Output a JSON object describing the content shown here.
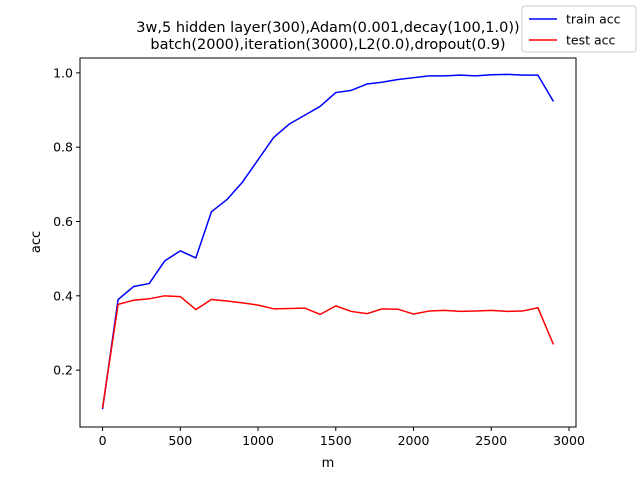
{
  "chart_data": {
    "type": "line",
    "title_lines": [
      "3w,5 hidden layer(300),Adam(0.001,decay(100,1.0))",
      "batch(2000),iteration(3000),L2(0.0),dropout(0.9)"
    ],
    "xlabel": "m",
    "ylabel": "acc",
    "xlim": [
      -145,
      3045
    ],
    "ylim": [
      0.047,
      1.04
    ],
    "xticks": [
      0,
      500,
      1000,
      1500,
      2000,
      2500,
      3000
    ],
    "yticks": [
      0.2,
      0.4,
      0.6,
      0.8,
      1.0
    ],
    "xtick_labels": [
      "0",
      "500",
      "1000",
      "1500",
      "2000",
      "2500",
      "3000"
    ],
    "ytick_labels": [
      "0.2",
      "0.4",
      "0.6",
      "0.8",
      "1.0"
    ],
    "legend_position": "top-right",
    "grid": false,
    "x": [
      0,
      100,
      200,
      300,
      400,
      500,
      600,
      700,
      800,
      900,
      1000,
      1100,
      1200,
      1300,
      1400,
      1500,
      1600,
      1700,
      1800,
      1900,
      2000,
      2100,
      2200,
      2300,
      2400,
      2500,
      2600,
      2700,
      2800,
      2900
    ],
    "series": [
      {
        "name": "train acc",
        "color": "#0000ff",
        "values": [
          0.095,
          0.39,
          0.425,
          0.433,
          0.494,
          0.521,
          0.502,
          0.626,
          0.659,
          0.706,
          0.766,
          0.826,
          0.862,
          0.886,
          0.91,
          0.947,
          0.953,
          0.97,
          0.975,
          0.982,
          0.987,
          0.992,
          0.992,
          0.994,
          0.992,
          0.995,
          0.996,
          0.994,
          0.994,
          0.923
        ]
      },
      {
        "name": "test acc",
        "color": "#ff0000",
        "values": [
          0.098,
          0.377,
          0.388,
          0.392,
          0.4,
          0.398,
          0.363,
          0.39,
          0.386,
          0.381,
          0.375,
          0.365,
          0.366,
          0.367,
          0.35,
          0.373,
          0.358,
          0.352,
          0.365,
          0.364,
          0.351,
          0.359,
          0.361,
          0.358,
          0.359,
          0.361,
          0.358,
          0.359,
          0.368,
          0.269
        ]
      }
    ]
  }
}
